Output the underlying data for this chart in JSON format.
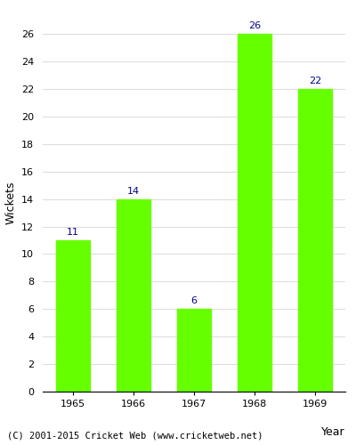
{
  "years": [
    "1965",
    "1966",
    "1967",
    "1968",
    "1969"
  ],
  "values": [
    11,
    14,
    6,
    26,
    22
  ],
  "bar_color": "#66ff00",
  "bar_edge_color": "#66ff00",
  "xlabel": "Year",
  "ylabel": "Wickets",
  "ylim": [
    0,
    27.5
  ],
  "yticks": [
    0,
    2,
    4,
    6,
    8,
    10,
    12,
    14,
    16,
    18,
    20,
    22,
    24,
    26
  ],
  "label_color": "#00008b",
  "label_fontsize": 8,
  "axis_fontsize": 9,
  "tick_fontsize": 8,
  "background_color": "#ffffff",
  "grid_color": "#dddddd",
  "footer_text": "(C) 2001-2015 Cricket Web (www.cricketweb.net)",
  "footer_fontsize": 7.5
}
